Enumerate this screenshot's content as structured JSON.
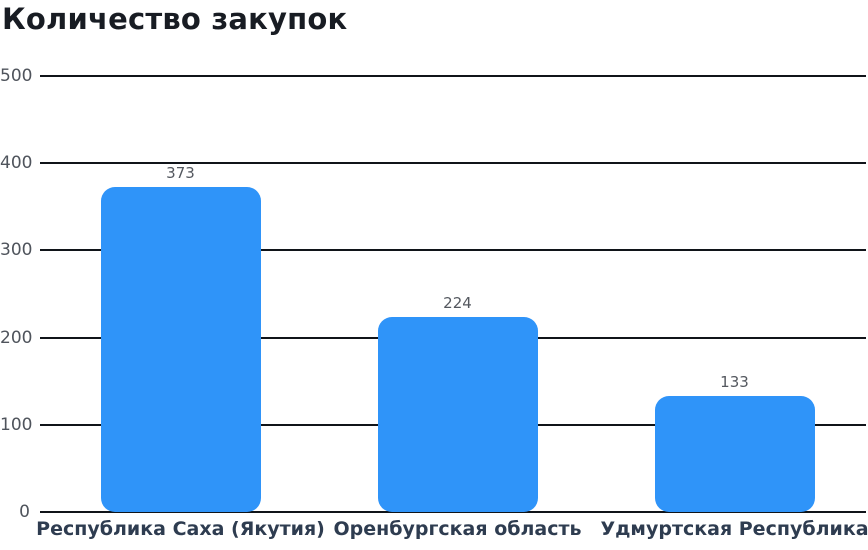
{
  "window": {
    "background": "#ffffff"
  },
  "chart": {
    "colors": {
      "title": "#181c23",
      "bar": "#2f94f9",
      "grid_line": "#101419",
      "y_tick_label": "#4f545c",
      "value_label": "#54585f",
      "category_label": "#2e3c50"
    }
  },
  "chart_data": {
    "type": "bar",
    "title": "Количество закупок",
    "categories": [
      "Республика Саха (Якутия)",
      "Оренбургская область",
      "Удмуртская Республика"
    ],
    "values": [
      373,
      224,
      133
    ],
    "value_labels": [
      "373",
      "224",
      "133"
    ],
    "xlabel": "",
    "ylabel": "",
    "ylim": [
      0,
      500
    ],
    "yticks": [
      0,
      100,
      200,
      300,
      400,
      500
    ],
    "grid": "horizontal",
    "legend": "none",
    "bar_corner_radius": 14
  }
}
